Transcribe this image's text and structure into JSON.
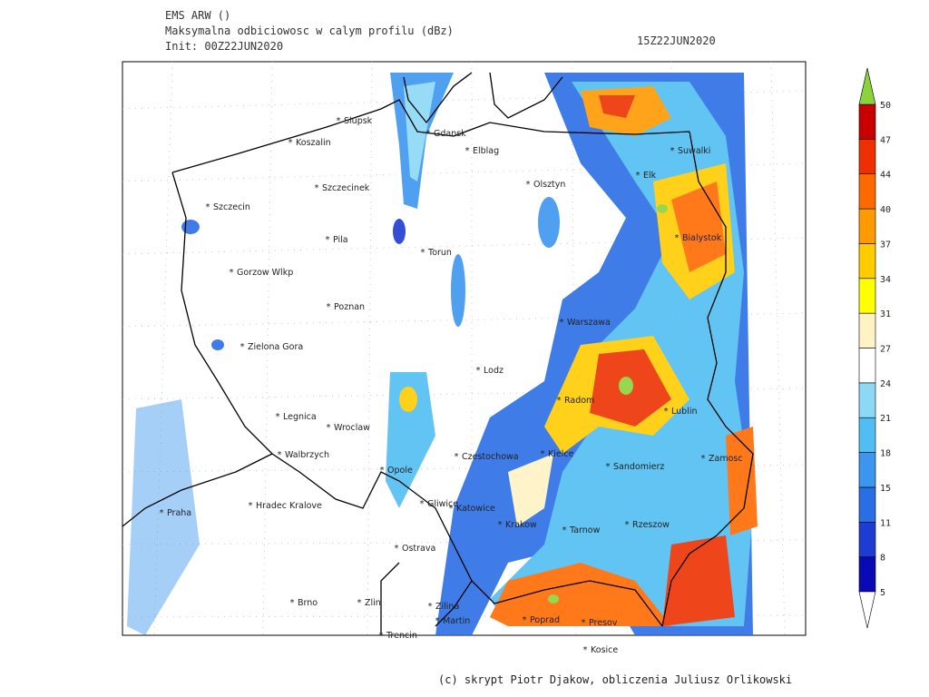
{
  "header": {
    "model": "EMS ARW ()",
    "field": "Maksymalna odbiciowosc w calym profilu (dBz)",
    "init": "Init: 00Z22JUN2020",
    "valid": "15Z22JUN2020"
  },
  "footer": "(c) skrypt Piotr Djakow, obliczenia Juliusz Orlikowski",
  "colorbar": {
    "levels": [
      5,
      8,
      11,
      15,
      18,
      21,
      24,
      27,
      31,
      34,
      37,
      40,
      44,
      47,
      50
    ],
    "colors": [
      "#0a0ab4",
      "#1e3cd2",
      "#2a6ee6",
      "#3c96f0",
      "#50bef2",
      "#8cd9f5",
      "#ffffff",
      "#fff2c4",
      "#ffff00",
      "#ffcc00",
      "#ff9a00",
      "#ff6a00",
      "#ee3000",
      "#c80000"
    ],
    "over_color": "#8cd23c",
    "under_color": "#ffffff"
  },
  "cities": [
    "Slupsk",
    "Koszalin",
    "Gdansk",
    "Elblag",
    "Szczecinek",
    "Olsztyn",
    "Suwalki",
    "Elk",
    "Szczecin",
    "Pila",
    "Torun",
    "Bialystok",
    "Gorzow Wlkp",
    "Poznan",
    "Warszawa",
    "Zielona Gora",
    "Lodz",
    "Radom",
    "Lublin",
    "Legnica",
    "Wroclaw",
    "Walbrzych",
    "Czestochowa",
    "Kielce",
    "Zamosc",
    "Sandomierz",
    "Opole",
    "Hradec Kralove",
    "Gliwice",
    "Katowice",
    "Praha",
    "Krakow",
    "Tarnow",
    "Rzeszow",
    "Ostrava",
    "Brno",
    "Zlin",
    "Zilina",
    "Martin",
    "Poprad",
    "Presov",
    "Trencin",
    "Kosice"
  ]
}
